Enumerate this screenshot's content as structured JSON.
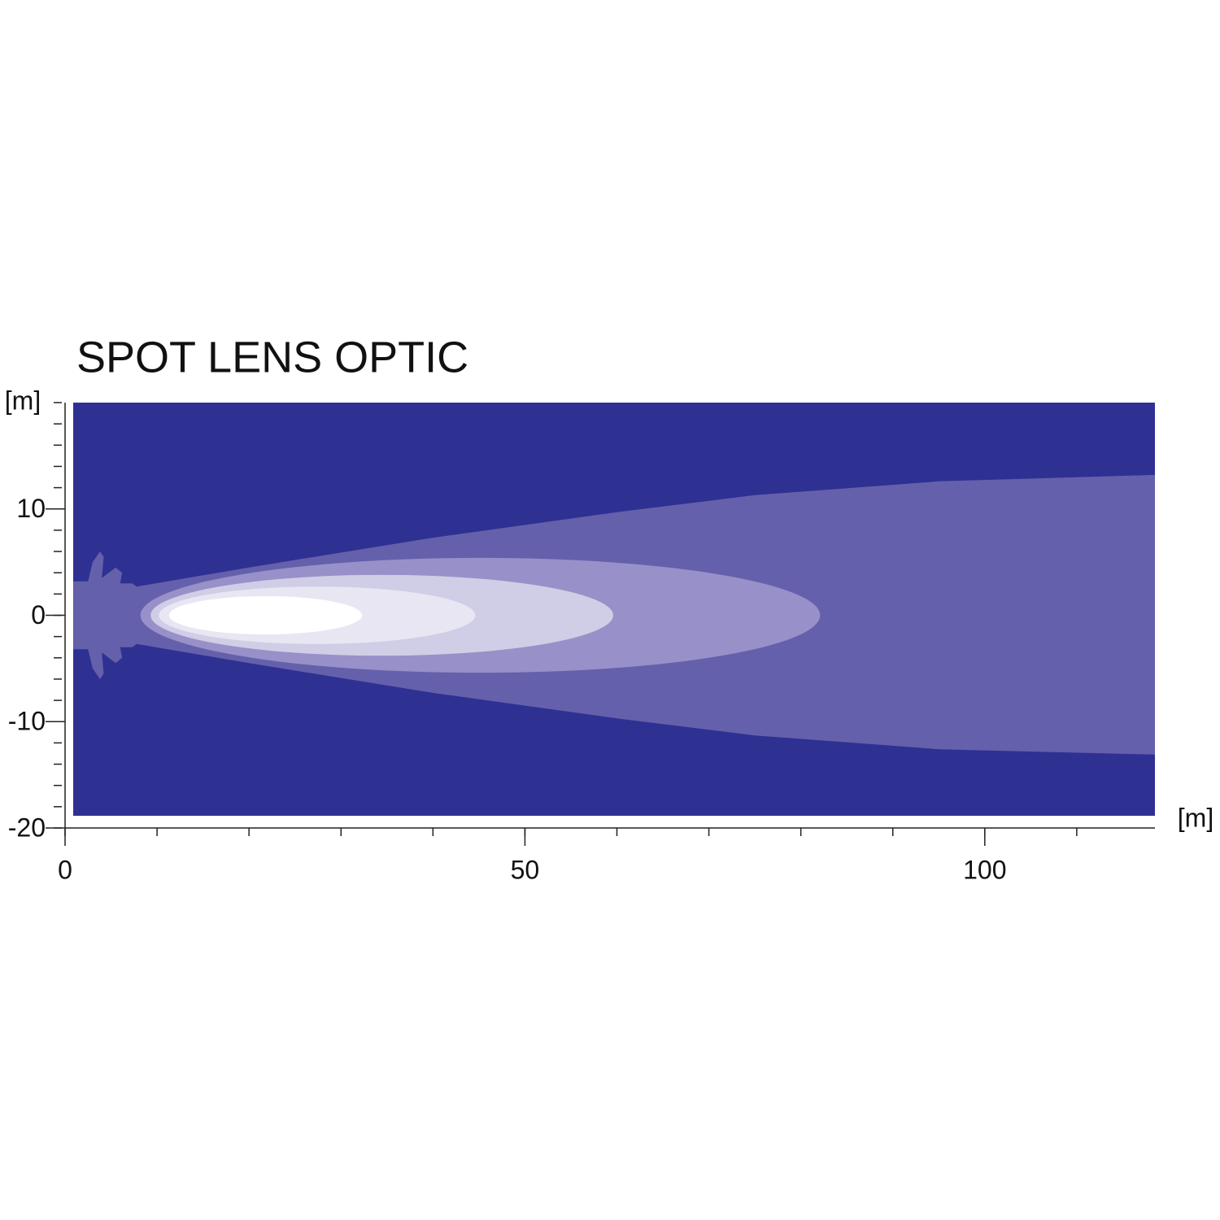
{
  "chart_data": {
    "type": "beam",
    "title": "SPOT LENS OPTIC",
    "x_label": "[m]",
    "y_label": "[m]",
    "xlim": [
      0,
      118.5
    ],
    "xticks": [
      0,
      50,
      100
    ],
    "ylim": [
      -20,
      20
    ],
    "yticks": [
      -20,
      -10,
      0,
      10
    ],
    "background": "#2e3192",
    "beam": {
      "color": "#6560ab",
      "x": [
        0.9,
        2.5,
        3.0,
        3.8,
        4.2,
        4.0,
        5.5,
        6.2,
        6.0,
        7.3,
        7.8,
        20,
        40,
        60,
        75,
        95,
        118.5,
        118.5,
        95,
        75,
        60,
        40,
        20,
        7.8,
        7.3,
        6.0,
        6.2,
        5.5,
        4.0,
        4.2,
        3.8,
        3.0,
        2.5,
        0.9
      ],
      "y": [
        3.2,
        3.2,
        5,
        6.0,
        5.5,
        3.5,
        4.5,
        4.0,
        3.0,
        3.0,
        2.7,
        4.5,
        7.3,
        9.7,
        11.3,
        12.6,
        13.2,
        -13.1,
        -12.6,
        -11.3,
        -9.7,
        -7.3,
        -4.5,
        -2.7,
        -3.0,
        -3.0,
        -4.0,
        -4.5,
        -3.5,
        -5.5,
        -6.0,
        -5,
        -3.2,
        -3.2
      ]
    },
    "ellipses": [
      {
        "color": "#9890c8",
        "x": [
          8.2,
          82.1
        ],
        "half_height": 5.4
      },
      {
        "color": "#d0cde6",
        "x": [
          9.3,
          59.6
        ],
        "half_height": 3.8
      },
      {
        "color": "#e8e6f3",
        "x": [
          10.2,
          44.6
        ],
        "half_height": 2.7
      },
      {
        "color": "#ffffff",
        "x": [
          11.3,
          32.3
        ],
        "half_height": 1.8
      }
    ]
  }
}
